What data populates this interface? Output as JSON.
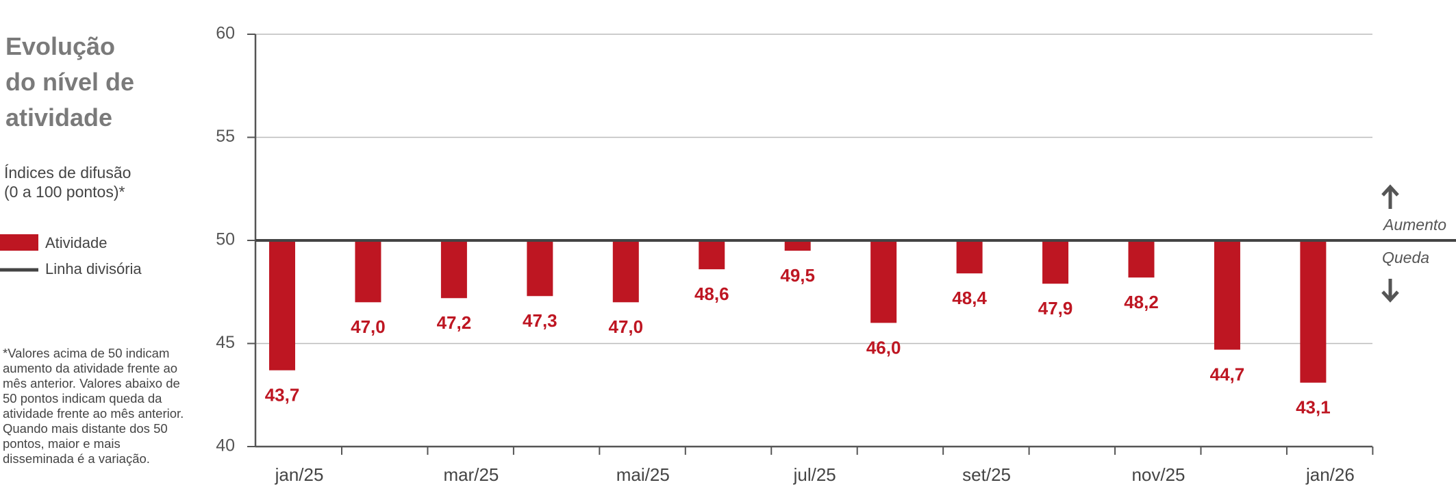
{
  "chart_data": {
    "type": "bar",
    "title": "Evolução do nível de atividade",
    "subtitle": "Índices de difusão (0 a 100 pontos)*",
    "categories": [
      "jan/25",
      null,
      "mar/25",
      null,
      "mai/25",
      null,
      "jul/25",
      null,
      "set/25",
      null,
      "nov/25",
      null,
      "jan/26"
    ],
    "series": [
      {
        "name": "Atividade",
        "color": "#be1622",
        "values": [
          43.7,
          47.0,
          47.2,
          47.3,
          47.0,
          48.6,
          49.5,
          46.0,
          48.4,
          47.9,
          48.2,
          44.7,
          43.1
        ],
        "value_labels": [
          "43,7",
          "47,0",
          "47,2",
          "47,3",
          "47,0",
          "48,6",
          "49,5",
          "46,0",
          "48,4",
          "47,9",
          "48,2",
          "44,7",
          "43,1"
        ]
      }
    ],
    "divider": {
      "name": "Linha divisória",
      "value": 50,
      "color": "#444444"
    },
    "ylim": [
      40,
      60
    ],
    "yticks": [
      40,
      45,
      50,
      55,
      60
    ],
    "grid": true,
    "annotations": {
      "above": "Aumento",
      "below": "Queda"
    },
    "footnote": "*Valores acima de 50 indicam aumento da atividade frente ao mês anterior. Valores abaixo de 50 pontos indicam queda da atividade frente ao mês anterior. Quando mais distante dos 50 pontos, maior e mais disseminada é a variação."
  }
}
